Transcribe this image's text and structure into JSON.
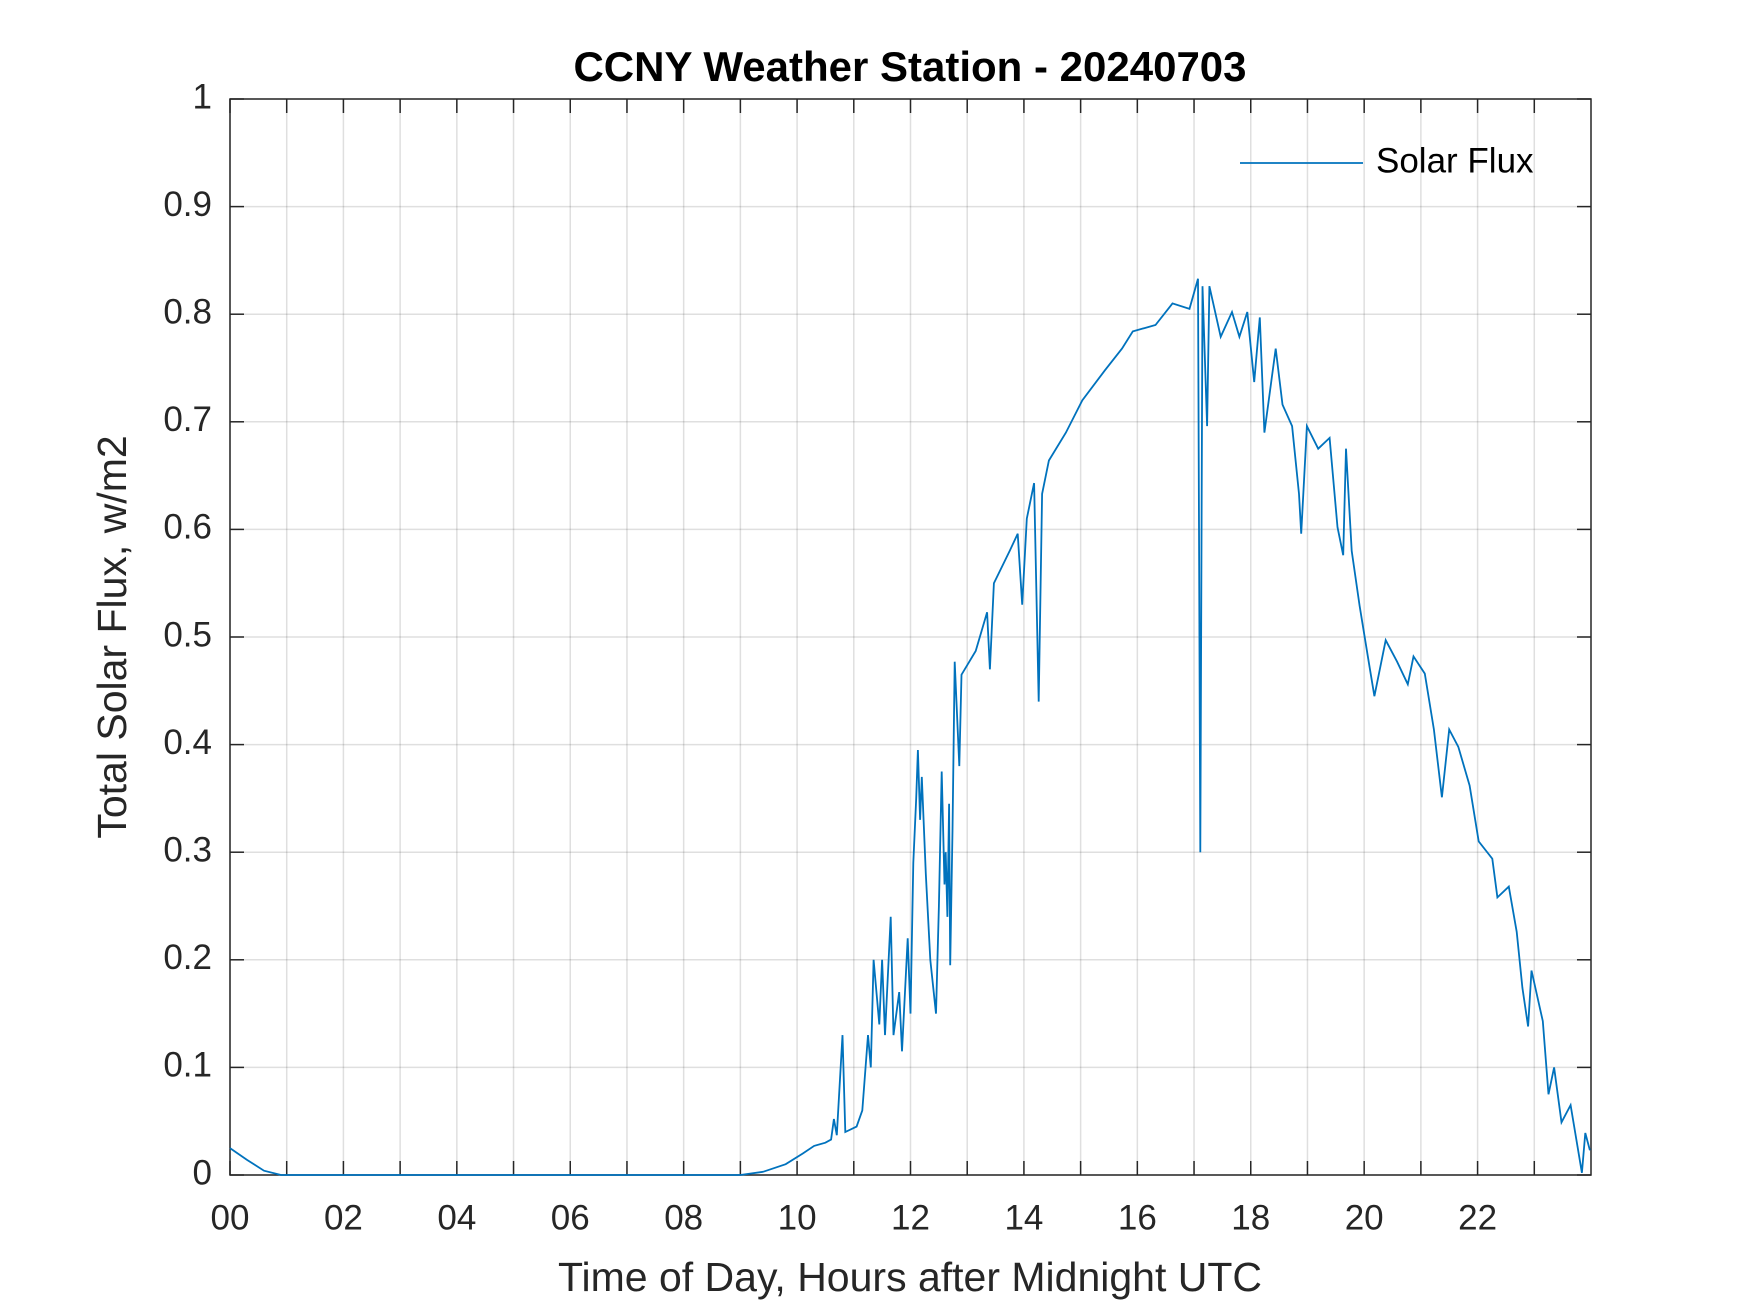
{
  "chart_data": {
    "type": "line",
    "title": "CCNY Weather Station - 20240703",
    "xlabel": "Time of Day, Hours after Midnight UTC",
    "ylabel": "Total Solar Flux, w/m2",
    "xlim": [
      0,
      24
    ],
    "ylim": [
      0,
      1
    ],
    "xticks": [
      {
        "value": 0,
        "label": "00"
      },
      {
        "value": 2,
        "label": "02"
      },
      {
        "value": 4,
        "label": "04"
      },
      {
        "value": 6,
        "label": "06"
      },
      {
        "value": 8,
        "label": "08"
      },
      {
        "value": 10,
        "label": "10"
      },
      {
        "value": 12,
        "label": "12"
      },
      {
        "value": 14,
        "label": "14"
      },
      {
        "value": 16,
        "label": "16"
      },
      {
        "value": 18,
        "label": "18"
      },
      {
        "value": 20,
        "label": "20"
      },
      {
        "value": 22,
        "label": "22"
      }
    ],
    "xminorticks": [
      1,
      3,
      5,
      7,
      9,
      11,
      13,
      15,
      17,
      19,
      21,
      23
    ],
    "yticks": [
      0,
      0.1,
      0.2,
      0.3,
      0.4,
      0.5,
      0.6,
      0.7,
      0.8,
      0.9,
      1
    ],
    "grid": true,
    "legend": "upper right",
    "series": [
      {
        "name": "Solar Flux",
        "color": "#0072bd",
        "x": [
          0,
          0.3,
          0.6,
          0.9,
          9.0,
          9.4,
          9.8,
          10.1,
          10.3,
          10.5,
          10.6,
          10.65,
          10.7,
          10.8,
          10.85,
          11.05,
          11.15,
          11.25,
          11.3,
          11.35,
          11.45,
          11.5,
          11.55,
          11.65,
          11.7,
          11.8,
          11.85,
          11.95,
          12.0,
          12.05,
          12.1,
          12.13,
          12.17,
          12.2,
          12.27,
          12.35,
          12.45,
          12.5,
          12.55,
          12.6,
          12.62,
          12.65,
          12.68,
          12.7,
          12.74,
          12.78,
          12.86,
          12.9,
          13.15,
          13.35,
          13.4,
          13.47,
          13.75,
          13.89,
          13.97,
          14.05,
          14.18,
          14.26,
          14.32,
          14.44,
          14.74,
          15.03,
          15.43,
          15.73,
          15.92,
          16.32,
          16.62,
          16.92,
          17.07,
          17.11,
          17.15,
          17.23,
          17.27,
          17.47,
          17.67,
          17.8,
          17.94,
          18.06,
          18.16,
          18.24,
          18.44,
          18.56,
          18.73,
          18.85,
          18.89,
          18.99,
          19.19,
          19.39,
          19.53,
          19.63,
          19.68,
          19.78,
          19.92,
          20.08,
          20.18,
          20.38,
          20.58,
          20.77,
          20.87,
          21.07,
          21.23,
          21.37,
          21.5,
          21.66,
          21.86,
          22.02,
          22.26,
          22.35,
          22.55,
          22.69,
          22.79,
          22.89,
          22.95,
          23.15,
          23.25,
          23.35,
          23.48,
          23.64,
          23.84,
          23.9,
          23.98
        ],
        "values": [
          0.025,
          0.014,
          0.004,
          0,
          0,
          0.003,
          0.01,
          0.02,
          0.027,
          0.03,
          0.033,
          0.052,
          0.037,
          0.13,
          0.04,
          0.045,
          0.06,
          0.13,
          0.1,
          0.2,
          0.14,
          0.2,
          0.13,
          0.24,
          0.13,
          0.17,
          0.115,
          0.22,
          0.15,
          0.29,
          0.35,
          0.395,
          0.33,
          0.37,
          0.28,
          0.2,
          0.15,
          0.25,
          0.375,
          0.27,
          0.3,
          0.24,
          0.345,
          0.195,
          0.32,
          0.477,
          0.38,
          0.465,
          0.487,
          0.523,
          0.47,
          0.55,
          0.58,
          0.596,
          0.53,
          0.61,
          0.643,
          0.44,
          0.633,
          0.664,
          0.69,
          0.72,
          0.748,
          0.768,
          0.784,
          0.79,
          0.81,
          0.805,
          0.833,
          0.3,
          0.826,
          0.696,
          0.826,
          0.779,
          0.802,
          0.779,
          0.802,
          0.737,
          0.797,
          0.69,
          0.768,
          0.716,
          0.696,
          0.633,
          0.596,
          0.696,
          0.675,
          0.685,
          0.602,
          0.576,
          0.675,
          0.58,
          0.529,
          0.477,
          0.445,
          0.497,
          0.477,
          0.456,
          0.482,
          0.466,
          0.414,
          0.351,
          0.414,
          0.398,
          0.362,
          0.31,
          0.294,
          0.258,
          0.268,
          0.226,
          0.174,
          0.138,
          0.19,
          0.143,
          0.075,
          0.1,
          0.049,
          0.065,
          0.002,
          0.039,
          0.023
        ]
      }
    ]
  }
}
